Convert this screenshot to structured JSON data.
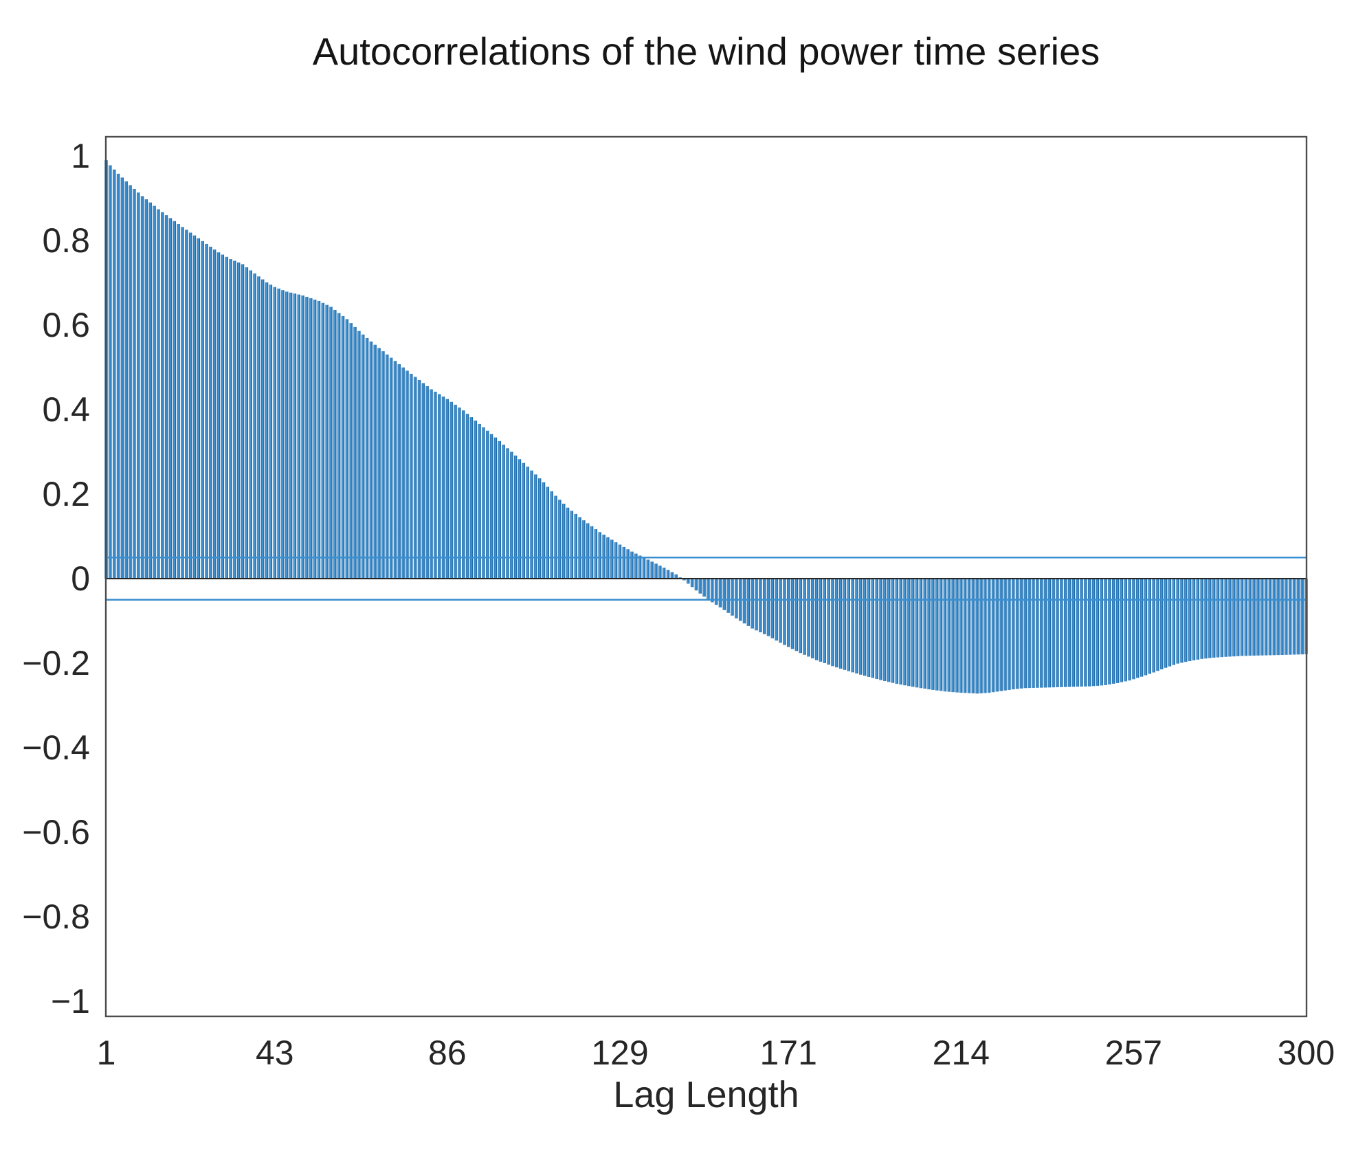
{
  "figure": {
    "title": "Autocorrelations of the wind power time series"
  },
  "chart_data": {
    "type": "stem",
    "title": "Autocorrelations of the wind power time series",
    "xlabel": "Lag Length",
    "ylabel": "",
    "grid": false,
    "legend": "none",
    "xlim": [
      1,
      300
    ],
    "ylim": [
      -1.04,
      1.05
    ],
    "x_ticks": [
      1,
      43,
      86,
      129,
      171,
      214,
      257,
      300
    ],
    "x_tick_labels": [
      "1",
      "43",
      "86",
      "129",
      "171",
      "214",
      "257",
      "300"
    ],
    "y_ticks": [
      1,
      0.8,
      0.6,
      0.4,
      0.2,
      0,
      -0.2,
      -0.4,
      -0.6,
      -0.8,
      -1
    ],
    "y_tick_labels": [
      "1",
      "0.8",
      "0.6",
      "0.4",
      "0.2",
      "0",
      "−0.2",
      "−0.4",
      "−0.6",
      "−0.8",
      "−1"
    ],
    "confidence_bounds": {
      "upper": 0.05,
      "lower": -0.05
    },
    "zero_baseline": 0,
    "notable_points": {
      "acf_lag_1": 0.99,
      "zero_crossing_lag": 144,
      "minimum_value": -0.272,
      "minimum_lag": 218,
      "acf_lag_300": -0.179
    },
    "series": [
      {
        "name": "sample autocorrelation",
        "description": "one vertical stem per integer lag 1..300; values linearly interpolated between control_points",
        "control_points": [
          [
            1,
            0.99
          ],
          [
            2,
            0.978
          ],
          [
            4,
            0.958
          ],
          [
            6,
            0.94
          ],
          [
            8,
            0.922
          ],
          [
            10,
            0.905
          ],
          [
            12,
            0.89
          ],
          [
            14,
            0.874
          ],
          [
            16,
            0.86
          ],
          [
            18,
            0.846
          ],
          [
            20,
            0.832
          ],
          [
            23,
            0.812
          ],
          [
            26,
            0.792
          ],
          [
            29,
            0.772
          ],
          [
            32,
            0.756
          ],
          [
            35,
            0.744
          ],
          [
            38,
            0.722
          ],
          [
            41,
            0.701
          ],
          [
            43,
            0.69
          ],
          [
            46,
            0.679
          ],
          [
            50,
            0.67
          ],
          [
            54,
            0.657
          ],
          [
            57,
            0.643
          ],
          [
            61,
            0.614
          ],
          [
            64,
            0.586
          ],
          [
            67,
            0.561
          ],
          [
            70,
            0.538
          ],
          [
            73,
            0.515
          ],
          [
            76,
            0.492
          ],
          [
            79,
            0.47
          ],
          [
            82,
            0.448
          ],
          [
            86,
            0.425
          ],
          [
            90,
            0.398
          ],
          [
            94,
            0.366
          ],
          [
            98,
            0.334
          ],
          [
            102,
            0.3
          ],
          [
            106,
            0.265
          ],
          [
            110,
            0.228
          ],
          [
            113,
            0.196
          ],
          [
            116,
            0.168
          ],
          [
            120,
            0.138
          ],
          [
            124,
            0.11
          ],
          [
            128,
            0.086
          ],
          [
            132,
            0.064
          ],
          [
            136,
            0.045
          ],
          [
            140,
            0.026
          ],
          [
            143,
            0.01
          ],
          [
            145,
            -0.004
          ],
          [
            148,
            -0.028
          ],
          [
            151,
            -0.05
          ],
          [
            154,
            -0.068
          ],
          [
            158,
            -0.094
          ],
          [
            162,
            -0.118
          ],
          [
            166,
            -0.136
          ],
          [
            170,
            -0.157
          ],
          [
            174,
            -0.176
          ],
          [
            178,
            -0.193
          ],
          [
            182,
            -0.207
          ],
          [
            186,
            -0.219
          ],
          [
            190,
            -0.23
          ],
          [
            194,
            -0.24
          ],
          [
            198,
            -0.249
          ],
          [
            202,
            -0.256
          ],
          [
            206,
            -0.262
          ],
          [
            210,
            -0.267
          ],
          [
            214,
            -0.27
          ],
          [
            218,
            -0.272
          ],
          [
            221,
            -0.27
          ],
          [
            224,
            -0.266
          ],
          [
            227,
            -0.262
          ],
          [
            230,
            -0.259
          ],
          [
            234,
            -0.258
          ],
          [
            238,
            -0.257
          ],
          [
            242,
            -0.256
          ],
          [
            246,
            -0.255
          ],
          [
            250,
            -0.252
          ],
          [
            253,
            -0.247
          ],
          [
            256,
            -0.241
          ],
          [
            259,
            -0.232
          ],
          [
            262,
            -0.222
          ],
          [
            265,
            -0.211
          ],
          [
            268,
            -0.201
          ],
          [
            271,
            -0.195
          ],
          [
            274,
            -0.19
          ],
          [
            277,
            -0.187
          ],
          [
            280,
            -0.185
          ],
          [
            284,
            -0.183
          ],
          [
            288,
            -0.182
          ],
          [
            292,
            -0.181
          ],
          [
            296,
            -0.18
          ],
          [
            300,
            -0.179
          ]
        ]
      }
    ],
    "colors": {
      "stem_mid": "#2e80c4",
      "stem_dark": "#16619f",
      "stem_light": "#55a1da",
      "confidence_line": "#3a8fd0",
      "zero_line": "#262626",
      "axis_box": "#4d4d4d",
      "text": "#262626",
      "background": "#ffffff"
    }
  }
}
